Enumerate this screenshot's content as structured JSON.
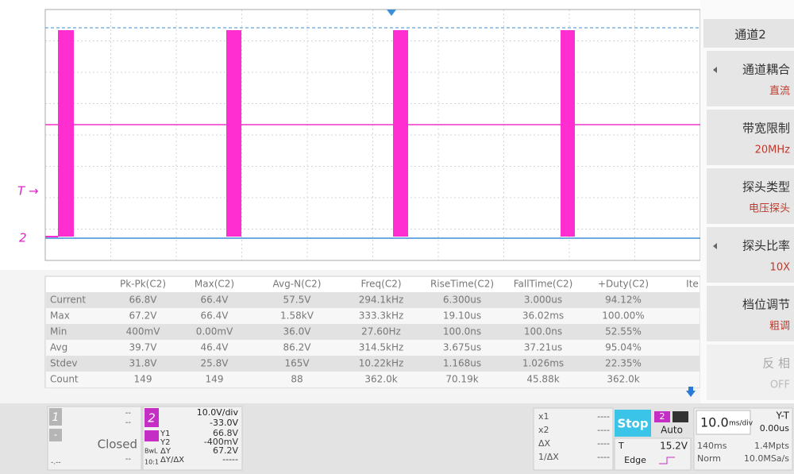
{
  "waveform": {
    "trigger_marker": "T →",
    "channel_marker": "2"
  },
  "menu": {
    "title": "通道2",
    "items": [
      {
        "label": "通道耦合",
        "value": "直流"
      },
      {
        "label": "带宽限制",
        "value": "20MHz"
      },
      {
        "label": "探头类型",
        "value": "电压探头"
      },
      {
        "label": "探头比率",
        "value": "10X"
      },
      {
        "label": "档位调节",
        "value": "粗调"
      },
      {
        "label": "反 相",
        "value": "OFF"
      }
    ]
  },
  "measurements": {
    "columns": [
      "Pk-Pk(C2)",
      "Max(C2)",
      "Avg-N(C2)",
      "Freq(C2)",
      "RiseTime(C2)",
      "FallTime(C2)",
      "+Duty(C2)",
      "Ite"
    ],
    "rows": [
      {
        "label": "Current",
        "values": [
          "66.8V",
          "66.4V",
          "57.5V",
          "294.1kHz",
          "6.300us",
          "3.000us",
          "94.12%"
        ]
      },
      {
        "label": "Max",
        "values": [
          "67.2V",
          "66.4V",
          "1.58kV",
          "333.3kHz",
          "19.10us",
          "36.02ms",
          "100.00%"
        ]
      },
      {
        "label": "Min",
        "values": [
          "400mV",
          "0.00mV",
          "36.0V",
          "27.60Hz",
          "100.0ns",
          "100.0ns",
          "52.55%"
        ]
      },
      {
        "label": "Avg",
        "values": [
          "39.7V",
          "46.4V",
          "86.2V",
          "314.5kHz",
          "3.675us",
          "37.21us",
          "95.04%"
        ]
      },
      {
        "label": "Stdev",
        "values": [
          "31.8V",
          "25.8V",
          "165V",
          "10.22kHz",
          "1.168us",
          "1.026ms",
          "22.35%"
        ]
      },
      {
        "label": "Count",
        "values": [
          "149",
          "149",
          "88",
          "362.0k",
          "70.19k",
          "45.88k",
          "362.0k"
        ]
      }
    ]
  },
  "status": {
    "channel1": {
      "number": "1",
      "scale": "--",
      "offset": "--",
      "minus": "-",
      "state": "Closed",
      "bottom": "--",
      "corner": "-.--"
    },
    "channel2": {
      "number": "2",
      "scale": "10.0V/div",
      "offset": "-33.0V",
      "bw": "BwL",
      "probe": "10:1",
      "cursors": [
        {
          "label": "Y1",
          "value": "66.8V"
        },
        {
          "label": "Y2",
          "value": "-400mV"
        },
        {
          "label": "ΔY",
          "value": "67.2V"
        },
        {
          "label": "ΔY/ΔX",
          "value": "-----"
        }
      ]
    },
    "cursors": [
      {
        "label": "x1",
        "value": "----"
      },
      {
        "label": "x2",
        "value": "----"
      },
      {
        "label": "ΔX",
        "value": "----"
      },
      {
        "label": "1/ΔX",
        "value": "----"
      }
    ],
    "run": "Stop",
    "trigger": {
      "channel": "2",
      "mode": "Auto",
      "source": "T",
      "level": "15.2V",
      "type": "Edge"
    },
    "timebase": {
      "scale": "10.0",
      "unit": "ms/div",
      "mode": "Y-T",
      "delay": "0.00us",
      "window": "140ms",
      "depth": "1.4Mpts",
      "acq": "Norm",
      "rate": "10.0MSa/s"
    }
  }
}
